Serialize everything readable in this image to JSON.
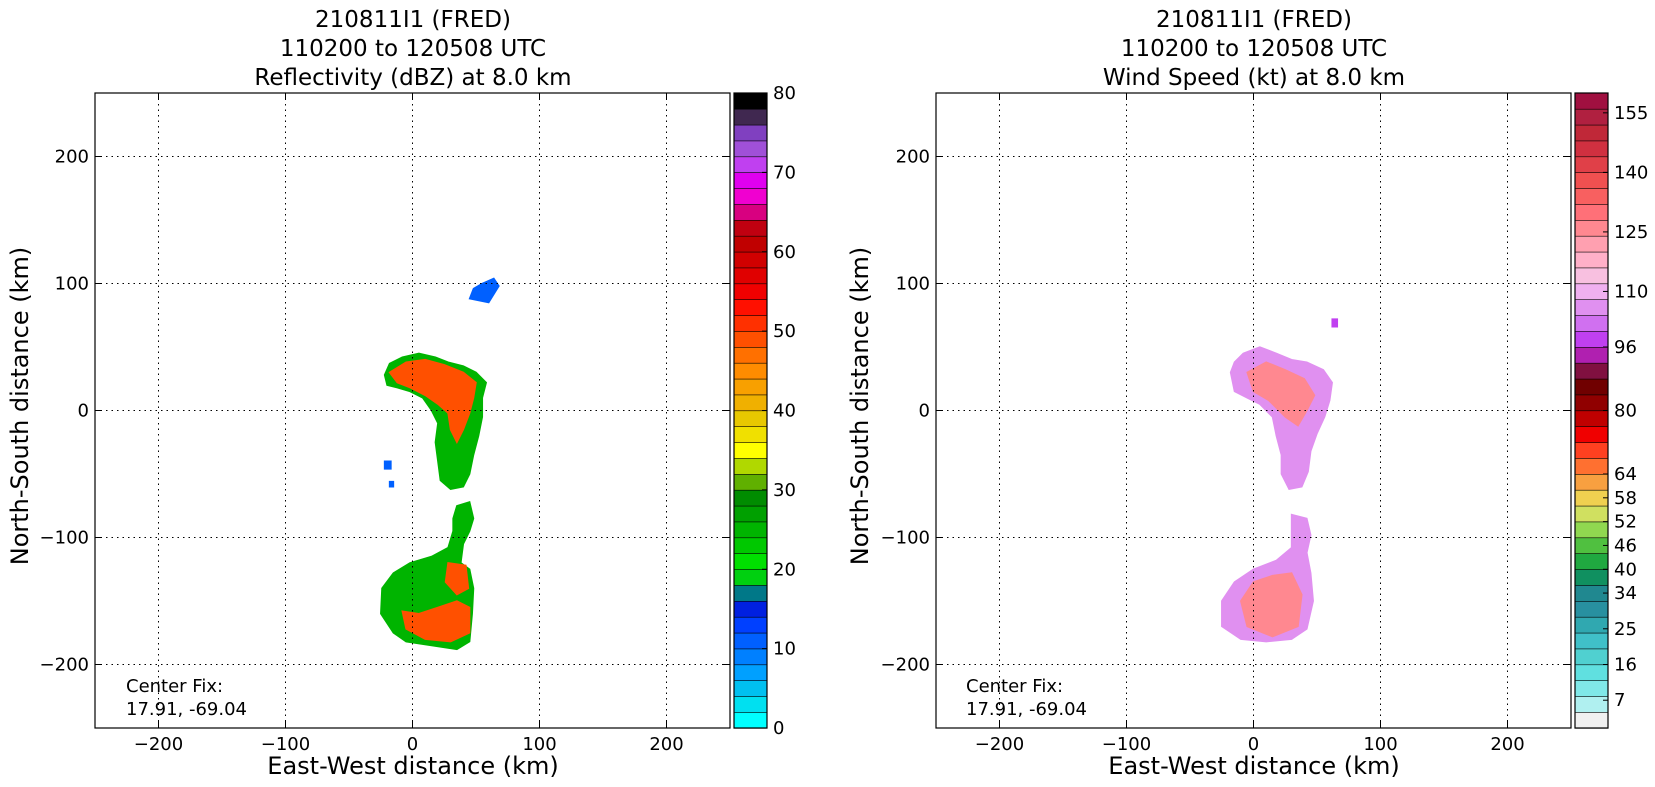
{
  "chart_data": [
    {
      "type": "heatmap",
      "title_lines": [
        "210811I1 (FRED)",
        "110200 to 120508 UTC",
        "Reflectivity (dBZ) at 8.0 km"
      ],
      "xlabel": "East-West distance (km)",
      "ylabel": "North-South distance (km)",
      "xlim": [
        -250,
        250
      ],
      "ylim": [
        -250,
        250
      ],
      "xticks": [
        -200,
        -100,
        0,
        100,
        200
      ],
      "yticks": [
        -200,
        -100,
        0,
        100,
        200
      ],
      "grid": true,
      "annotation": [
        "Center Fix:",
        "17.91, -69.04"
      ],
      "colorbar": {
        "range": [
          0,
          80
        ],
        "tick_values": [
          0,
          10,
          20,
          30,
          40,
          50,
          60,
          70,
          80
        ],
        "tick_labels": [
          "0",
          "10",
          "20",
          "30",
          "40",
          "50",
          "60",
          "70",
          "80"
        ],
        "colors": [
          "#00ffff",
          "#00e0f0",
          "#00c0f0",
          "#00a0ff",
          "#0080ff",
          "#0060ff",
          "#0040ff",
          "#0020e0",
          "#007888",
          "#00d010",
          "#00e000",
          "#00c800",
          "#00b400",
          "#00a000",
          "#008c00",
          "#60b000",
          "#b0d800",
          "#ffff00",
          "#f0e000",
          "#e8c800",
          "#f0b000",
          "#f8a000",
          "#ff8c00",
          "#ff7000",
          "#ff5000",
          "#ff3000",
          "#ff1000",
          "#f00000",
          "#e00000",
          "#d00000",
          "#c00000",
          "#c00010",
          "#d80080",
          "#f000d0",
          "#e000f0",
          "#c040f0",
          "#a050d8",
          "#8040c0",
          "#402850",
          "#000000"
        ]
      },
      "echo_regions": [
        {
          "kind": "blob",
          "points": [
            [
              -22,
              28
            ],
            [
              -18,
              37
            ],
            [
              -8,
              42
            ],
            [
              5,
              45
            ],
            [
              18,
              42
            ],
            [
              28,
              38
            ],
            [
              40,
              35
            ],
            [
              50,
              30
            ],
            [
              58,
              22
            ],
            [
              55,
              10
            ],
            [
              55,
              -5
            ],
            [
              52,
              -20
            ],
            [
              48,
              -35
            ],
            [
              45,
              -50
            ],
            [
              40,
              -60
            ],
            [
              30,
              -62
            ],
            [
              22,
              -55
            ],
            [
              20,
              -40
            ],
            [
              18,
              -25
            ],
            [
              20,
              -10
            ],
            [
              15,
              0
            ],
            [
              8,
              10
            ],
            [
              -2,
              15
            ],
            [
              -12,
              18
            ],
            [
              -20,
              20
            ]
          ],
          "level": 12
        },
        {
          "kind": "blob",
          "points": [
            [
              -18,
              30
            ],
            [
              -5,
              38
            ],
            [
              10,
              40
            ],
            [
              25,
              36
            ],
            [
              40,
              30
            ],
            [
              50,
              22
            ],
            [
              48,
              10
            ],
            [
              45,
              -2
            ],
            [
              40,
              -15
            ],
            [
              35,
              -25
            ],
            [
              30,
              -15
            ],
            [
              28,
              -2
            ],
            [
              20,
              5
            ],
            [
              10,
              12
            ],
            [
              -2,
              18
            ],
            [
              -12,
              22
            ]
          ],
          "level": 24
        },
        {
          "kind": "blob",
          "points": [
            [
              45,
              88
            ],
            [
              60,
              85
            ],
            [
              68,
              98
            ],
            [
              64,
              104
            ],
            [
              55,
              100
            ],
            [
              48,
              96
            ]
          ],
          "level": 5
        },
        {
          "kind": "blob",
          "points": [
            [
              35,
              -75
            ],
            [
              45,
              -72
            ],
            [
              48,
              -85
            ],
            [
              45,
              -95
            ],
            [
              40,
              -105
            ],
            [
              38,
              -120
            ],
            [
              45,
              -125
            ],
            [
              48,
              -140
            ],
            [
              47,
              -160
            ],
            [
              45,
              -182
            ],
            [
              35,
              -188
            ],
            [
              15,
              -185
            ],
            [
              -5,
              -182
            ],
            [
              -15,
              -175
            ],
            [
              -25,
              -160
            ],
            [
              -24,
              -140
            ],
            [
              -15,
              -128
            ],
            [
              -2,
              -120
            ],
            [
              15,
              -115
            ],
            [
              28,
              -108
            ],
            [
              32,
              -95
            ],
            [
              32,
              -85
            ]
          ],
          "level": 12
        },
        {
          "kind": "blob",
          "points": [
            [
              -8,
              -158
            ],
            [
              5,
              -160
            ],
            [
              20,
              -155
            ],
            [
              35,
              -150
            ],
            [
              45,
              -155
            ],
            [
              45,
              -175
            ],
            [
              30,
              -182
            ],
            [
              10,
              -180
            ],
            [
              -5,
              -172
            ]
          ],
          "level": 24
        },
        {
          "kind": "blob",
          "points": [
            [
              28,
              -120
            ],
            [
              42,
              -122
            ],
            [
              44,
              -140
            ],
            [
              35,
              -145
            ],
            [
              26,
              -135
            ]
          ],
          "level": 24
        },
        {
          "kind": "blob",
          "points": [
            [
              -22,
              -40
            ],
            [
              -17,
              -40
            ],
            [
              -17,
              -46
            ],
            [
              -22,
              -46
            ]
          ],
          "level": 5
        },
        {
          "kind": "blob",
          "points": [
            [
              -18,
              -56
            ],
            [
              -15,
              -56
            ],
            [
              -15,
              -60
            ],
            [
              -18,
              -60
            ]
          ],
          "level": 5
        }
      ]
    },
    {
      "type": "heatmap",
      "title_lines": [
        "210811I1 (FRED)",
        "110200 to 120508 UTC",
        "Wind Speed (kt) at 8.0 km"
      ],
      "xlabel": "East-West distance (km)",
      "ylabel": "North-South distance (km)",
      "xlim": [
        -250,
        250
      ],
      "ylim": [
        -250,
        250
      ],
      "xticks": [
        -200,
        -100,
        0,
        100,
        200
      ],
      "yticks": [
        -200,
        -100,
        0,
        100,
        200
      ],
      "grid": true,
      "annotation": [
        "Center Fix:",
        "17.91, -69.04"
      ],
      "colorbar": {
        "range": [
          0,
          160
        ],
        "tick_values": [
          7,
          16,
          25,
          34,
          40,
          46,
          52,
          58,
          64,
          80,
          96,
          110,
          125,
          140,
          155
        ],
        "tick_labels": [
          "7",
          "16",
          "25",
          "34",
          "40",
          "46",
          "52",
          "58",
          "64",
          "80",
          "96",
          "110",
          "125",
          "140",
          "155"
        ],
        "colors": [
          "#f0f0f0",
          "#b0f0f0",
          "#80e8e8",
          "#60e0e0",
          "#50d0d0",
          "#40c0c8",
          "#30a8b0",
          "#2890a0",
          "#208890",
          "#109060",
          "#20a840",
          "#50c040",
          "#90d850",
          "#d0e060",
          "#f0d050",
          "#f8a040",
          "#ff7030",
          "#ff4020",
          "#f00000",
          "#c00000",
          "#900000",
          "#700000",
          "#801040",
          "#b020b0",
          "#c040f0",
          "#d070f0",
          "#e090f0",
          "#f0b0f0",
          "#f8c0e0",
          "#ffb0c8",
          "#ffa0b0",
          "#ff8890",
          "#ff7078",
          "#f86060",
          "#f05050",
          "#e04048",
          "#d03040",
          "#c02838",
          "#b02040",
          "#a01040"
        ]
      },
      "echo_regions": [
        {
          "kind": "blob",
          "points": [
            [
              -15,
              38
            ],
            [
              -8,
              45
            ],
            [
              5,
              50
            ],
            [
              18,
              45
            ],
            [
              30,
              40
            ],
            [
              42,
              38
            ],
            [
              55,
              32
            ],
            [
              62,
              22
            ],
            [
              60,
              8
            ],
            [
              56,
              -5
            ],
            [
              50,
              -18
            ],
            [
              45,
              -32
            ],
            [
              43,
              -48
            ],
            [
              38,
              -60
            ],
            [
              28,
              -62
            ],
            [
              22,
              -50
            ],
            [
              22,
              -35
            ],
            [
              18,
              -20
            ],
            [
              15,
              -5
            ],
            [
              5,
              5
            ],
            [
              -5,
              10
            ],
            [
              -15,
              15
            ],
            [
              -18,
              30
            ]
          ],
          "level": 26
        },
        {
          "kind": "blob",
          "points": [
            [
              -5,
              30
            ],
            [
              10,
              38
            ],
            [
              25,
              32
            ],
            [
              40,
              25
            ],
            [
              48,
              12
            ],
            [
              42,
              0
            ],
            [
              35,
              -12
            ],
            [
              25,
              -5
            ],
            [
              12,
              8
            ],
            [
              0,
              15
            ]
          ],
          "level": 31
        },
        {
          "kind": "blob",
          "points": [
            [
              30,
              -82
            ],
            [
              42,
              -85
            ],
            [
              45,
              -98
            ],
            [
              42,
              -112
            ],
            [
              45,
              -128
            ],
            [
              47,
              -150
            ],
            [
              42,
              -172
            ],
            [
              30,
              -180
            ],
            [
              10,
              -182
            ],
            [
              -10,
              -180
            ],
            [
              -25,
              -170
            ],
            [
              -25,
              -150
            ],
            [
              -15,
              -135
            ],
            [
              0,
              -125
            ],
            [
              18,
              -118
            ],
            [
              30,
              -108
            ]
          ],
          "level": 26
        },
        {
          "kind": "blob",
          "points": [
            [
              0,
              -135
            ],
            [
              15,
              -130
            ],
            [
              30,
              -128
            ],
            [
              38,
              -145
            ],
            [
              35,
              -170
            ],
            [
              15,
              -178
            ],
            [
              -5,
              -170
            ],
            [
              -10,
              -150
            ]
          ],
          "level": 31
        },
        {
          "kind": "blob",
          "points": [
            [
              62,
              66
            ],
            [
              66,
              66
            ],
            [
              66,
              72
            ],
            [
              62,
              72
            ]
          ],
          "level": 24
        }
      ]
    }
  ]
}
